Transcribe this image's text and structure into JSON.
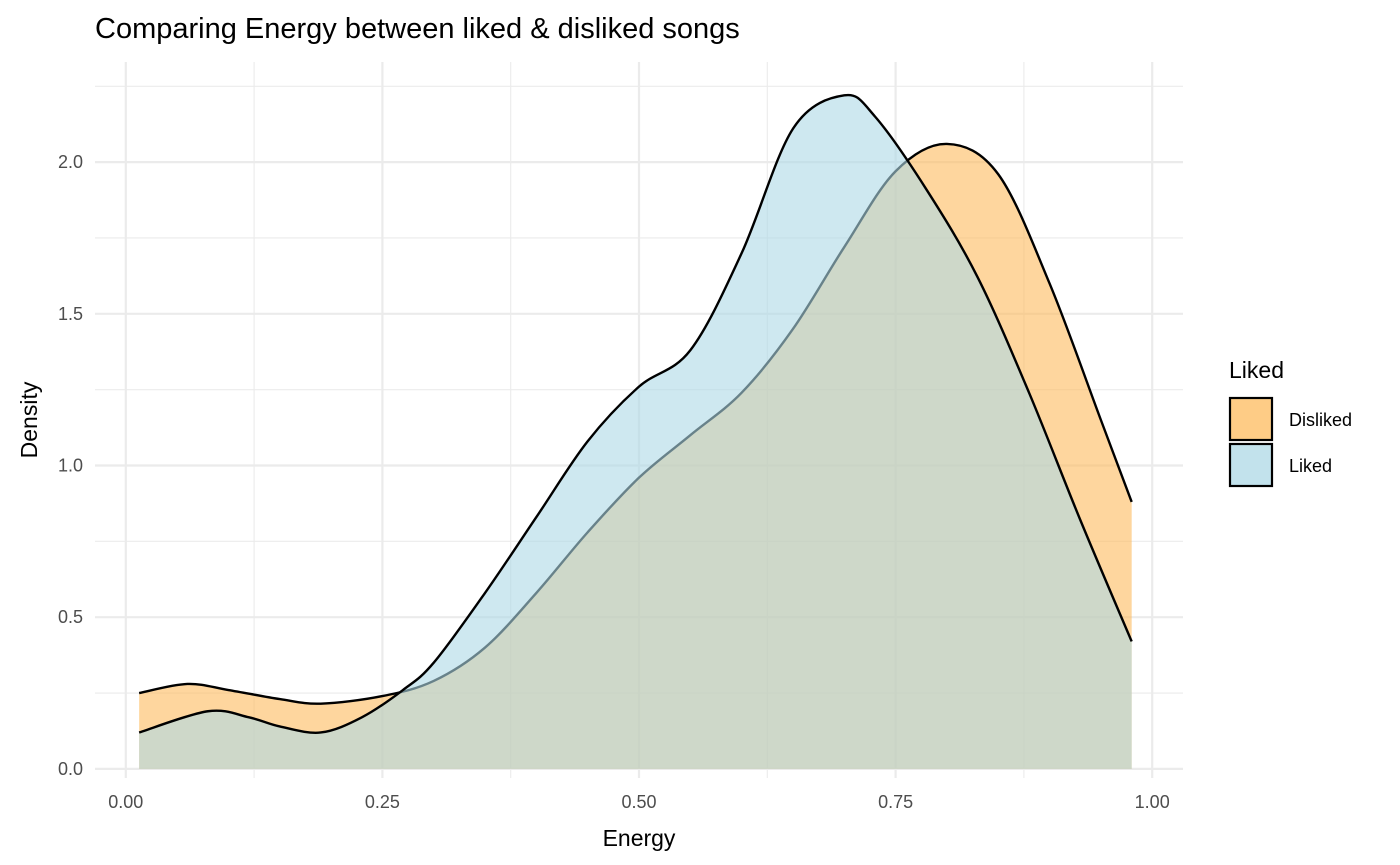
{
  "chart_data": {
    "type": "area",
    "title": "Comparing Energy between liked & disliked songs",
    "xlabel": "Energy",
    "ylabel": "Density",
    "xlim": [
      -0.03,
      1.03
    ],
    "ylim": [
      -0.03,
      2.33
    ],
    "x_ticks": [
      0.0,
      0.25,
      0.5,
      0.75,
      1.0
    ],
    "x_tick_labels": [
      "0.00",
      "0.25",
      "0.50",
      "0.75",
      "1.00"
    ],
    "y_ticks": [
      0.0,
      0.5,
      1.0,
      1.5,
      2.0
    ],
    "y_tick_labels": [
      "0.0",
      "0.5",
      "1.0",
      "1.5",
      "2.0"
    ],
    "grid": true,
    "legend": {
      "title": "Liked",
      "position": "right"
    },
    "series": [
      {
        "name": "Disliked",
        "color": "#fdbb5e",
        "x": [
          0.013,
          0.06,
          0.1,
          0.15,
          0.19,
          0.25,
          0.3,
          0.35,
          0.4,
          0.45,
          0.5,
          0.55,
          0.6,
          0.65,
          0.7,
          0.75,
          0.8,
          0.85,
          0.9,
          0.95,
          0.98
        ],
        "y": [
          0.25,
          0.28,
          0.26,
          0.23,
          0.215,
          0.24,
          0.29,
          0.4,
          0.58,
          0.78,
          0.96,
          1.1,
          1.24,
          1.45,
          1.72,
          1.97,
          2.06,
          1.96,
          1.6,
          1.15,
          0.88
        ]
      },
      {
        "name": "Liked",
        "color": "#add8e6",
        "x": [
          0.013,
          0.08,
          0.12,
          0.15,
          0.19,
          0.23,
          0.27,
          0.3,
          0.35,
          0.4,
          0.45,
          0.5,
          0.55,
          0.6,
          0.65,
          0.7,
          0.73,
          0.78,
          0.83,
          0.88,
          0.93,
          0.98
        ],
        "y": [
          0.12,
          0.19,
          0.17,
          0.14,
          0.12,
          0.17,
          0.26,
          0.35,
          0.58,
          0.83,
          1.08,
          1.26,
          1.38,
          1.7,
          2.11,
          2.22,
          2.15,
          1.91,
          1.62,
          1.24,
          0.82,
          0.42
        ]
      }
    ]
  }
}
